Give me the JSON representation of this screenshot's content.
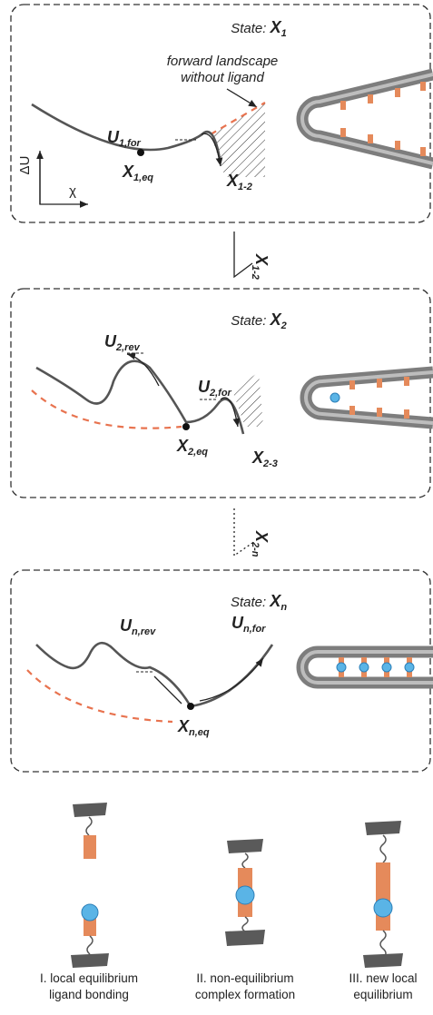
{
  "panels": [
    {
      "state": {
        "prefix": "State: ",
        "symbol": "X",
        "sub": "1"
      },
      "annotation": [
        "forward landscape",
        "without ligand"
      ],
      "barrier": {
        "symbol": "U",
        "sub": "1,for"
      },
      "equilibrium": {
        "symbol": "X",
        "sub": "1,eq"
      },
      "exit": {
        "symbol": "X",
        "sub": "1-2"
      },
      "axes": {
        "y": "ΔU",
        "x": "χ"
      }
    },
    {
      "state": {
        "prefix": "State: ",
        "symbol": "X",
        "sub": "2"
      },
      "reverse": {
        "symbol": "U",
        "sub": "2,rev"
      },
      "barrier": {
        "symbol": "U",
        "sub": "2,for"
      },
      "equilibrium": {
        "symbol": "X",
        "sub": "2,eq"
      },
      "exit": {
        "symbol": "X",
        "sub": "2-3"
      }
    },
    {
      "state": {
        "prefix": "State: ",
        "symbol": "X",
        "sub": "n"
      },
      "reverse": {
        "symbol": "U",
        "sub": "n,rev"
      },
      "barrier": {
        "symbol": "U",
        "sub": "n,for"
      },
      "equilibrium": {
        "symbol": "X",
        "sub": "n,eq"
      }
    }
  ],
  "transitions": [
    {
      "symbol": "X",
      "sub": "1-2"
    },
    {
      "symbol": "X",
      "sub": "2-n"
    }
  ],
  "steps": [
    [
      "I. local equilibrium",
      "ligand bonding"
    ],
    [
      "II. non-equilibrium",
      "complex formation"
    ],
    [
      "III. new local",
      "equilibrium"
    ]
  ]
}
